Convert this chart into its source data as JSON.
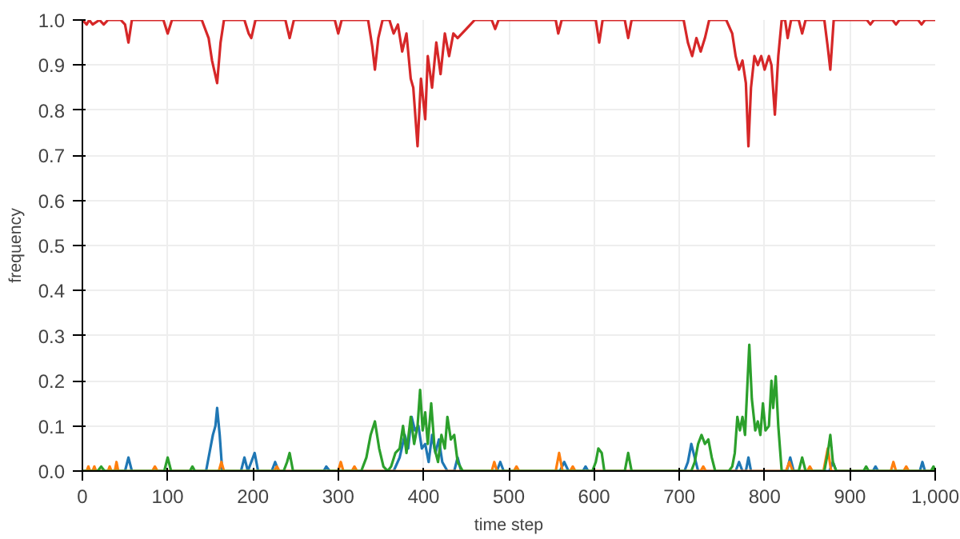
{
  "chart_data": {
    "type": "line",
    "xlabel": "time step",
    "ylabel": "frequency",
    "xlim": [
      0,
      1000
    ],
    "ylim": [
      0,
      1
    ],
    "xticks": [
      0,
      100,
      200,
      300,
      400,
      500,
      600,
      700,
      800,
      900,
      {
        "value": 1000,
        "label": "1,000"
      }
    ],
    "yticks": [
      {
        "value": 0,
        "label": "0.0"
      },
      0.1,
      0.2,
      0.3,
      0.4,
      0.5,
      0.6,
      0.7,
      0.8,
      0.9,
      {
        "value": 1,
        "label": "1.0"
      }
    ],
    "grid": true,
    "line_style": "solid",
    "series": [
      {
        "color": "#d62728",
        "x": [
          0,
          5,
          8,
          12,
          20,
          25,
          30,
          45,
          50,
          54,
          58,
          95,
          100,
          105,
          140,
          148,
          152,
          158,
          162,
          166,
          190,
          195,
          198,
          203,
          238,
          243,
          248,
          296,
          300,
          304,
          335,
          340,
          343,
          347,
          352,
          360,
          365,
          370,
          375,
          380,
          385,
          388,
          393,
          397,
          402,
          405,
          410,
          415,
          420,
          425,
          430,
          435,
          440,
          450,
          460,
          480,
          484,
          488,
          555,
          558,
          562,
          602,
          606,
          610,
          636,
          640,
          644,
          705,
          710,
          715,
          720,
          725,
          730,
          735,
          755,
          762,
          766,
          770,
          774,
          778,
          781,
          784,
          788,
          792,
          796,
          800,
          805,
          808,
          812,
          816,
          820,
          824,
          827,
          831,
          840,
          844,
          848,
          870,
          874,
          877,
          881,
          920,
          924,
          928,
          950,
          954,
          958,
          980,
          984,
          988,
          1000
        ],
        "values": [
          1,
          0.99,
          1,
          0.99,
          1,
          0.99,
          1,
          1,
          0.99,
          0.95,
          1,
          1,
          0.97,
          1,
          1,
          0.96,
          0.91,
          0.86,
          0.95,
          1,
          1,
          0.97,
          0.96,
          1,
          1,
          0.96,
          1,
          1,
          0.97,
          1,
          1,
          0.94,
          0.89,
          0.96,
          1,
          1,
          0.97,
          0.99,
          0.93,
          0.97,
          0.87,
          0.85,
          0.72,
          0.87,
          0.78,
          0.92,
          0.85,
          0.95,
          0.88,
          0.97,
          0.92,
          0.97,
          0.96,
          0.98,
          1,
          1,
          0.98,
          1,
          1,
          0.97,
          1,
          1,
          0.95,
          1,
          1,
          0.96,
          1,
          1,
          0.95,
          0.92,
          0.96,
          0.93,
          0.96,
          1,
          1,
          0.97,
          0.92,
          0.89,
          0.91,
          0.86,
          0.72,
          0.85,
          0.92,
          0.9,
          0.92,
          0.89,
          0.92,
          0.9,
          0.79,
          0.92,
          1,
          1,
          0.96,
          1,
          1,
          0.97,
          1,
          1,
          0.94,
          0.89,
          1,
          1,
          0.99,
          1,
          1,
          0.99,
          1,
          1,
          0.99,
          1,
          1
        ]
      },
      {
        "color": "#1f77b4",
        "x": [
          0,
          50,
          54,
          58,
          145,
          150,
          153,
          156,
          158,
          161,
          164,
          186,
          190,
          194,
          198,
          202,
          206,
          222,
          226,
          230,
          283,
          286,
          290,
          365,
          372,
          378,
          382,
          386,
          390,
          394,
          398,
          402,
          406,
          410,
          414,
          418,
          422,
          428,
          436,
          440,
          444,
          486,
          490,
          494,
          560,
          565,
          570,
          587,
          590,
          593,
          706,
          710,
          714,
          718,
          722,
          766,
          770,
          774,
          778,
          781,
          784,
          826,
          830,
          834,
          876,
          880,
          884,
          927,
          930,
          933,
          982,
          985,
          988,
          1000
        ],
        "values": [
          0,
          0,
          0.03,
          0,
          0,
          0.05,
          0.08,
          0.1,
          0.14,
          0.08,
          0,
          0,
          0.03,
          0,
          0.02,
          0.04,
          0,
          0,
          0.02,
          0,
          0,
          0.01,
          0,
          0,
          0.03,
          0.08,
          0.05,
          0.12,
          0.09,
          0.1,
          0.05,
          0.06,
          0.02,
          0.08,
          0.04,
          0.07,
          0.02,
          0,
          0,
          0.03,
          0,
          0,
          0.02,
          0,
          0,
          0.02,
          0,
          0,
          0.01,
          0,
          0,
          0.02,
          0.06,
          0.03,
          0,
          0,
          0.02,
          0,
          0,
          0.03,
          0,
          0,
          0.03,
          0,
          0,
          0.02,
          0,
          0,
          0.01,
          0,
          0,
          0.02,
          0,
          0
        ]
      },
      {
        "color": "#ff7f0e",
        "x": [
          0,
          5,
          7,
          9,
          12,
          14,
          16,
          30,
          32,
          34,
          38,
          40,
          42,
          82,
          85,
          88,
          160,
          163,
          166,
          225,
          228,
          231,
          300,
          303,
          306,
          316,
          319,
          322,
          480,
          483,
          486,
          506,
          509,
          512,
          555,
          559,
          563,
          572,
          575,
          578,
          725,
          728,
          731,
          825,
          829,
          833,
          850,
          853,
          856,
          869,
          874,
          878,
          948,
          951,
          954,
          963,
          966,
          969,
          1000
        ],
        "values": [
          0,
          0,
          0.01,
          0,
          0,
          0.01,
          0,
          0,
          0.01,
          0,
          0,
          0.02,
          0,
          0,
          0.01,
          0,
          0,
          0.02,
          0,
          0,
          0.01,
          0,
          0,
          0.02,
          0,
          0,
          0.01,
          0,
          0,
          0.02,
          0,
          0,
          0.01,
          0,
          0,
          0.04,
          0,
          0,
          0.01,
          0,
          0,
          0.01,
          0,
          0,
          0.02,
          0,
          0,
          0.01,
          0,
          0,
          0.05,
          0,
          0,
          0.02,
          0,
          0,
          0.01,
          0,
          0
        ]
      },
      {
        "color": "#2ca02c",
        "x": [
          0,
          18,
          22,
          26,
          96,
          100,
          104,
          126,
          129,
          132,
          236,
          240,
          243,
          247,
          327,
          333,
          338,
          343,
          348,
          353,
          358,
          362,
          367,
          372,
          376,
          380,
          385,
          389,
          393,
          396,
          399,
          402,
          405,
          409,
          413,
          417,
          421,
          425,
          428,
          432,
          436,
          440,
          446,
          598,
          602,
          605,
          609,
          612,
          636,
          640,
          644,
          714,
          718,
          722,
          726,
          730,
          734,
          738,
          742,
          758,
          762,
          765,
          768,
          771,
          774,
          777,
          780,
          782,
          785,
          789,
          792,
          795,
          798,
          801,
          805,
          808,
          810,
          813,
          816,
          820,
          840,
          844,
          848,
          870,
          874,
          877,
          880,
          884,
          916,
          919,
          922,
          995,
          998,
          1000
        ],
        "values": [
          0,
          0,
          0.01,
          0,
          0,
          0.03,
          0,
          0,
          0.01,
          0,
          0,
          0.02,
          0.04,
          0,
          0,
          0.03,
          0.08,
          0.11,
          0.05,
          0.01,
          0,
          0.01,
          0.04,
          0.05,
          0.1,
          0.04,
          0.12,
          0.06,
          0.1,
          0.18,
          0.09,
          0.13,
          0.06,
          0.15,
          0.05,
          0.02,
          0.08,
          0.05,
          0.12,
          0.07,
          0.08,
          0.02,
          0,
          0,
          0.02,
          0.05,
          0.04,
          0,
          0,
          0.04,
          0,
          0,
          0.02,
          0.06,
          0.08,
          0.06,
          0.07,
          0.03,
          0,
          0,
          0.01,
          0.04,
          0.12,
          0.09,
          0.12,
          0.08,
          0.2,
          0.28,
          0.16,
          0.09,
          0.11,
          0.08,
          0.15,
          0.09,
          0.1,
          0.2,
          0.14,
          0.21,
          0.1,
          0,
          0,
          0.03,
          0,
          0,
          0.04,
          0.08,
          0.02,
          0,
          0,
          0.01,
          0,
          0,
          0.01,
          0
        ]
      }
    ]
  }
}
